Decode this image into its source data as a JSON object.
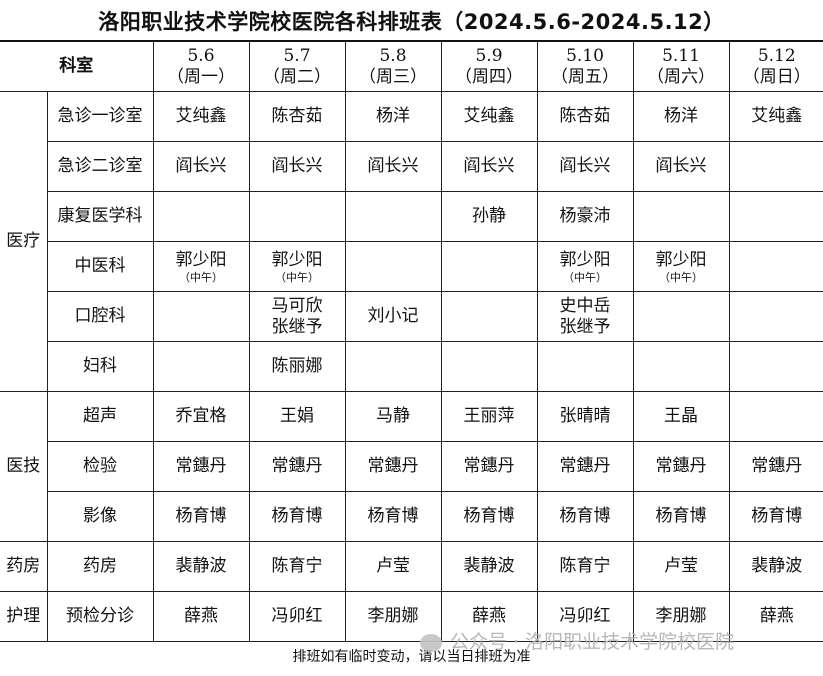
{
  "title": "洛阳职业技术学院校医院各科排班表（2024.5.6-2024.5.12）",
  "header": {
    "dept_label": "科室",
    "days": [
      {
        "date": "5.6",
        "weekday": "（周一）"
      },
      {
        "date": "5.7",
        "weekday": "（周二）"
      },
      {
        "date": "5.8",
        "weekday": "（周三）"
      },
      {
        "date": "5.9",
        "weekday": "（周四）"
      },
      {
        "date": "5.10",
        "weekday": "（周五）"
      },
      {
        "date": "5.11",
        "weekday": "（周六）"
      },
      {
        "date": "5.12",
        "weekday": "（周日）"
      }
    ]
  },
  "groups": [
    {
      "name": "医疗",
      "rows": [
        {
          "dept": "急诊一诊室",
          "cells": [
            [
              "艾纯鑫"
            ],
            [
              "陈杏茹"
            ],
            [
              "杨洋"
            ],
            [
              "艾纯鑫"
            ],
            [
              "陈杏茹"
            ],
            [
              "杨洋"
            ],
            [
              "艾纯鑫"
            ]
          ]
        },
        {
          "dept": "急诊二诊室",
          "cells": [
            [
              "阎长兴"
            ],
            [
              "阎长兴"
            ],
            [
              "阎长兴"
            ],
            [
              "阎长兴"
            ],
            [
              "阎长兴"
            ],
            [
              "阎长兴"
            ],
            []
          ]
        },
        {
          "dept": "康复医学科",
          "cells": [
            [],
            [],
            [],
            [
              "孙静"
            ],
            [
              "杨豪沛"
            ],
            [],
            []
          ]
        },
        {
          "dept": "中医科",
          "cells": [
            [
              "郭少阳",
              "（中午）"
            ],
            [
              "郭少阳",
              "（中午）"
            ],
            [],
            [],
            [
              "郭少阳",
              "（中午）"
            ],
            [
              "郭少阳",
              "（中午）"
            ],
            []
          ],
          "noted": true
        },
        {
          "dept": "口腔科",
          "cells": [
            [],
            [
              "马可欣",
              "张继予"
            ],
            [
              "刘小记"
            ],
            [],
            [
              "史中岳",
              "张继予"
            ],
            [],
            []
          ]
        },
        {
          "dept": "妇科",
          "cells": [
            [],
            [
              "陈丽娜"
            ],
            [],
            [],
            [],
            [],
            []
          ]
        }
      ]
    },
    {
      "name": "医技",
      "rows": [
        {
          "dept": "超声",
          "cells": [
            [
              "乔宜格"
            ],
            [
              "王娟"
            ],
            [
              "马静"
            ],
            [
              "王丽萍"
            ],
            [
              "张晴晴"
            ],
            [
              "王晶"
            ],
            []
          ]
        },
        {
          "dept": "检验",
          "cells": [
            [
              "常鏸丹"
            ],
            [
              "常鏸丹"
            ],
            [
              "常鏸丹"
            ],
            [
              "常鏸丹"
            ],
            [
              "常鏸丹"
            ],
            [
              "常鏸丹"
            ],
            [
              "常鏸丹"
            ]
          ]
        },
        {
          "dept": "影像",
          "cells": [
            [
              "杨育博"
            ],
            [
              "杨育博"
            ],
            [
              "杨育博"
            ],
            [
              "杨育博"
            ],
            [
              "杨育博"
            ],
            [
              "杨育博"
            ],
            [
              "杨育博"
            ]
          ]
        }
      ]
    },
    {
      "name": "药房",
      "rows": [
        {
          "dept": "药房",
          "cells": [
            [
              "裴静波"
            ],
            [
              "陈育宁"
            ],
            [
              "卢莹"
            ],
            [
              "裴静波"
            ],
            [
              "陈育宁"
            ],
            [
              "卢莹"
            ],
            [
              "裴静波"
            ]
          ]
        }
      ]
    },
    {
      "name": "护理",
      "rows": [
        {
          "dept": "预检分诊",
          "cells": [
            [
              "薛燕"
            ],
            [
              "冯卯红"
            ],
            [
              "李朋娜"
            ],
            [
              "薛燕"
            ],
            [
              "冯卯红"
            ],
            [
              "李朋娜"
            ],
            [
              "薛燕"
            ]
          ]
        }
      ]
    }
  ],
  "footer": "排班如有临时变动，请以当日排班为准",
  "watermark": "公众号 · 洛阳职业技术学院校医院"
}
